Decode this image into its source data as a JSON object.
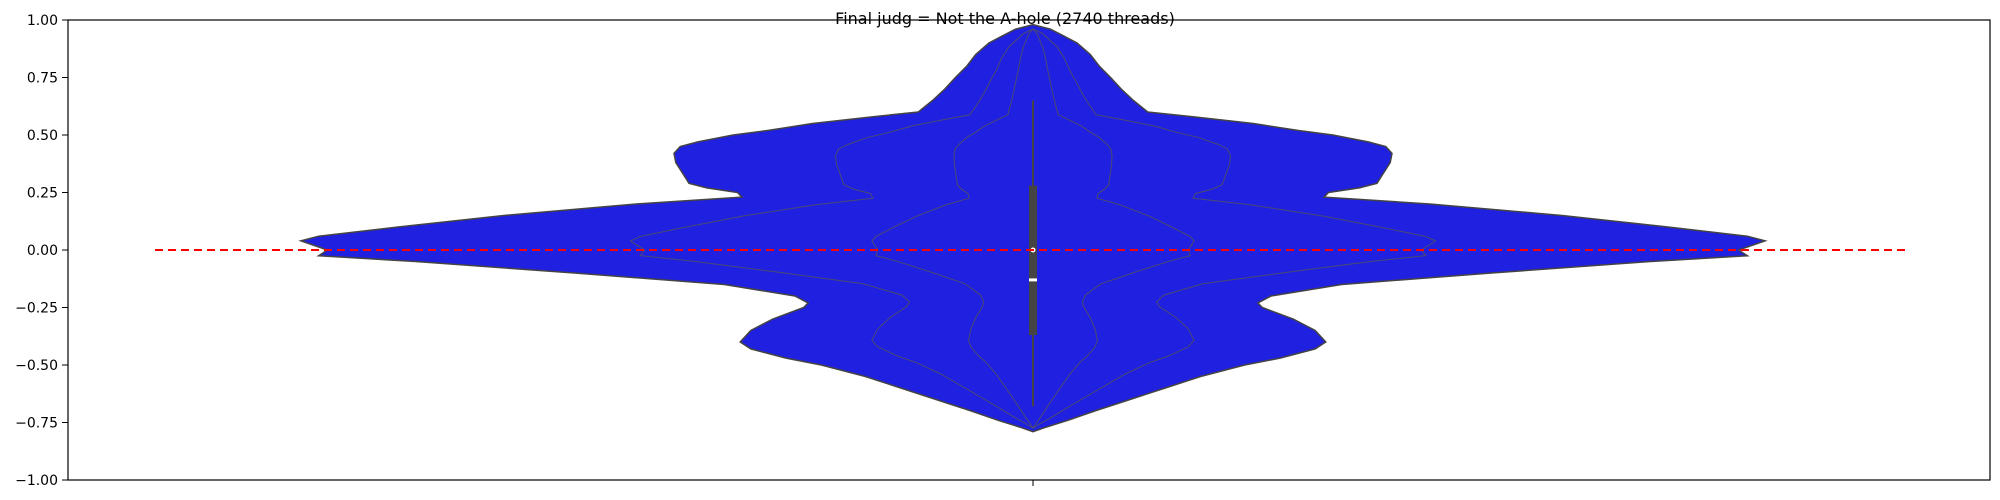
{
  "chart_data": {
    "type": "violin",
    "title": "Final judg = Not the A-hole (2740 threads)",
    "xlabel": "",
    "ylabel": "",
    "ylim": [
      -1.0,
      1.0
    ],
    "yticks": [
      -1.0,
      -0.75,
      -0.5,
      -0.25,
      0.0,
      0.25,
      0.5,
      0.75,
      1.0
    ],
    "ytick_labels": [
      "−1.00",
      "−0.75",
      "−0.50",
      "−0.25",
      "0.00",
      "0.25",
      "0.50",
      "0.75",
      "1.00"
    ],
    "grid": false,
    "legend": "none",
    "reference_line": {
      "y": 0.0,
      "style": "dashed",
      "color": "#ff0000"
    },
    "series": [
      {
        "fill_color": "#2020e0",
        "edge_color": "#444444",
        "outline": [
          [
            0.98,
            0.0
          ],
          [
            0.96,
            0.02
          ],
          [
            0.93,
            0.035
          ],
          [
            0.9,
            0.05
          ],
          [
            0.85,
            0.065
          ],
          [
            0.8,
            0.075
          ],
          [
            0.75,
            0.088
          ],
          [
            0.7,
            0.1
          ],
          [
            0.65,
            0.114
          ],
          [
            0.6,
            0.13
          ],
          [
            0.58,
            0.18
          ],
          [
            0.55,
            0.25
          ],
          [
            0.52,
            0.3
          ],
          [
            0.5,
            0.34
          ],
          [
            0.47,
            0.38
          ],
          [
            0.45,
            0.4
          ],
          [
            0.42,
            0.407
          ],
          [
            0.38,
            0.405
          ],
          [
            0.35,
            0.4
          ],
          [
            0.32,
            0.395
          ],
          [
            0.29,
            0.39
          ],
          [
            0.27,
            0.37
          ],
          [
            0.25,
            0.335
          ],
          [
            0.23,
            0.33
          ],
          [
            0.2,
            0.45
          ],
          [
            0.15,
            0.6
          ],
          [
            0.1,
            0.72
          ],
          [
            0.06,
            0.81
          ],
          [
            0.04,
            0.83
          ],
          [
            0.0,
            0.8
          ],
          [
            -0.025,
            0.81
          ],
          [
            -0.05,
            0.7
          ],
          [
            -0.1,
            0.52
          ],
          [
            -0.15,
            0.35
          ],
          [
            -0.2,
            0.27
          ],
          [
            -0.23,
            0.255
          ],
          [
            -0.25,
            0.26
          ],
          [
            -0.3,
            0.295
          ],
          [
            -0.35,
            0.32
          ],
          [
            -0.4,
            0.332
          ],
          [
            -0.43,
            0.32
          ],
          [
            -0.47,
            0.28
          ],
          [
            -0.5,
            0.24
          ],
          [
            -0.55,
            0.19
          ],
          [
            -0.6,
            0.15
          ],
          [
            -0.65,
            0.11
          ],
          [
            -0.7,
            0.07
          ],
          [
            -0.74,
            0.04
          ],
          [
            -0.77,
            0.015
          ],
          [
            -0.79,
            0.0
          ]
        ]
      }
    ],
    "box": {
      "q1": -0.37,
      "median": -0.13,
      "q3": 0.28,
      "whisker_low": -0.68,
      "whisker_high": 0.65
    },
    "mean_marker": 0.0
  }
}
